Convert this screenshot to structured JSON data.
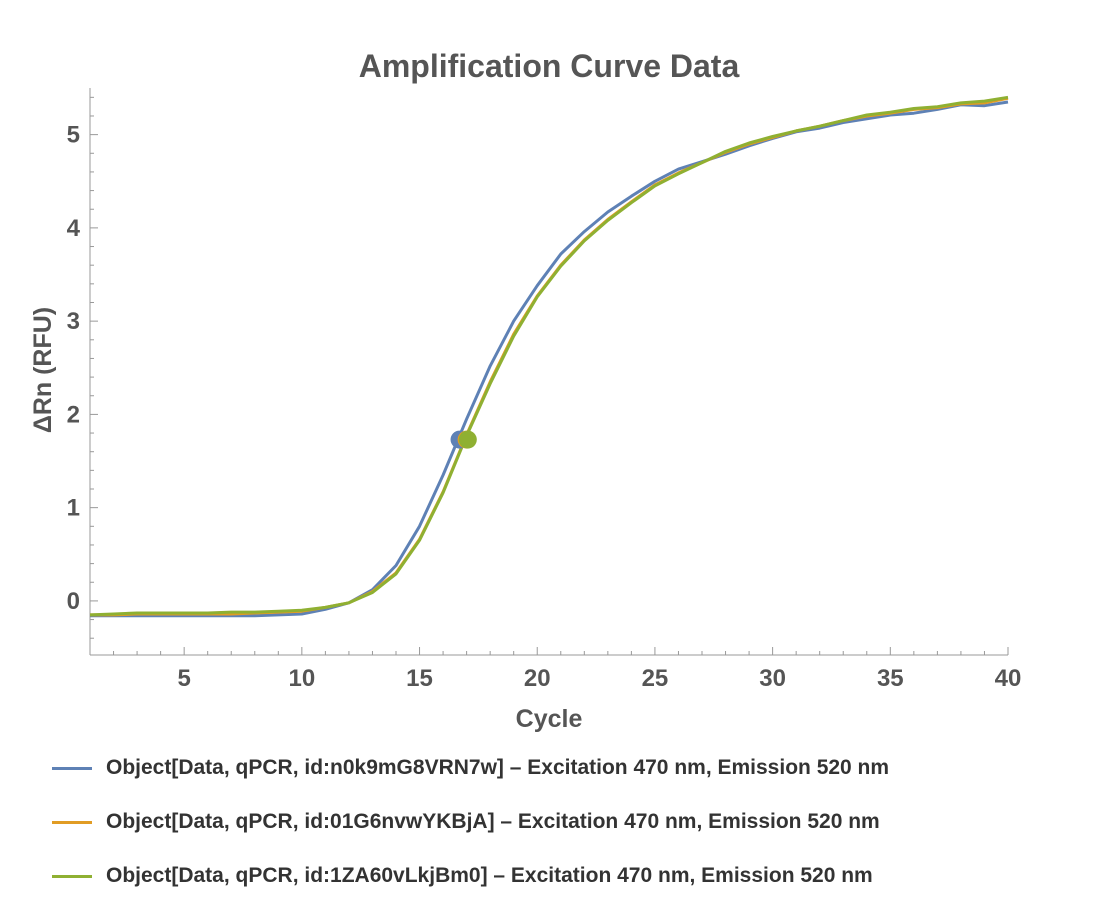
{
  "chart_data": {
    "type": "line",
    "title": "Amplification Curve Data",
    "xlabel": "Cycle",
    "ylabel": "ΔRn (RFU)",
    "xlim": [
      1,
      40
    ],
    "ylim": [
      -0.58,
      5.5
    ],
    "xticks": [
      5,
      10,
      15,
      20,
      25,
      30,
      35,
      40
    ],
    "yticks": [
      0,
      1,
      2,
      3,
      4,
      5
    ],
    "legend_position": "bottom",
    "series": [
      {
        "name": "Object[Data, qPCR, id:n0k9mG8VRN7w] – Excitation 470 nm, Emission 520 nm",
        "color": "#5E81B5",
        "x": [
          1,
          2,
          3,
          4,
          5,
          6,
          7,
          8,
          9,
          10,
          11,
          12,
          13,
          14,
          15,
          16,
          17,
          18,
          19,
          20,
          21,
          22,
          23,
          24,
          25,
          26,
          27,
          28,
          29,
          30,
          31,
          32,
          33,
          34,
          35,
          36,
          37,
          38,
          39,
          40
        ],
        "y": [
          -0.16,
          -0.16,
          -0.16,
          -0.16,
          -0.16,
          -0.16,
          -0.16,
          -0.16,
          -0.15,
          -0.14,
          -0.09,
          -0.02,
          0.12,
          0.38,
          0.8,
          1.35,
          1.95,
          2.52,
          3.0,
          3.38,
          3.72,
          3.96,
          4.17,
          4.34,
          4.5,
          4.63,
          4.71,
          4.79,
          4.88,
          4.96,
          5.03,
          5.07,
          5.13,
          5.17,
          5.21,
          5.23,
          5.27,
          5.32,
          5.31,
          5.35
        ],
        "threshold_point": [
          16.7,
          1.73
        ]
      },
      {
        "name": "Object[Data, qPCR, id:01G6nvwYKBjA] – Excitation 470 nm, Emission 520 nm",
        "color": "#E19C24",
        "x": [
          1,
          2,
          3,
          4,
          5,
          6,
          7,
          8,
          9,
          10,
          11,
          12,
          13,
          14,
          15,
          16,
          17,
          18,
          19,
          20,
          21,
          22,
          23,
          24,
          25,
          26,
          27,
          28,
          29,
          30,
          31,
          32,
          33,
          34,
          35,
          36,
          37,
          38,
          39,
          40
        ],
        "y": [
          -0.15,
          -0.15,
          -0.14,
          -0.14,
          -0.14,
          -0.14,
          -0.14,
          -0.13,
          -0.12,
          -0.11,
          -0.07,
          -0.02,
          0.1,
          0.3,
          0.66,
          1.17,
          1.78,
          2.35,
          2.86,
          3.27,
          3.6,
          3.87,
          4.09,
          4.28,
          4.46,
          4.59,
          4.7,
          4.81,
          4.9,
          4.97,
          5.04,
          5.09,
          5.15,
          5.2,
          5.23,
          5.27,
          5.29,
          5.33,
          5.34,
          5.39
        ],
        "threshold_point": [
          17.0,
          1.73
        ]
      },
      {
        "name": "Object[Data, qPCR, id:1ZA60vLkjBm0] – Excitation 470 nm, Emission 520 nm",
        "color": "#8FB032",
        "x": [
          1,
          2,
          3,
          4,
          5,
          6,
          7,
          8,
          9,
          10,
          11,
          12,
          13,
          14,
          15,
          16,
          17,
          18,
          19,
          20,
          21,
          22,
          23,
          24,
          25,
          26,
          27,
          28,
          29,
          30,
          31,
          32,
          33,
          34,
          35,
          36,
          37,
          38,
          39,
          40
        ],
        "y": [
          -0.15,
          -0.14,
          -0.13,
          -0.13,
          -0.13,
          -0.13,
          -0.12,
          -0.12,
          -0.11,
          -0.1,
          -0.07,
          -0.02,
          0.09,
          0.29,
          0.65,
          1.16,
          1.77,
          2.33,
          2.84,
          3.26,
          3.59,
          3.86,
          4.08,
          4.27,
          4.45,
          4.58,
          4.7,
          4.82,
          4.91,
          4.98,
          5.04,
          5.09,
          5.15,
          5.21,
          5.24,
          5.28,
          5.3,
          5.34,
          5.36,
          5.4
        ],
        "threshold_point": [
          17.05,
          1.73
        ]
      }
    ]
  }
}
